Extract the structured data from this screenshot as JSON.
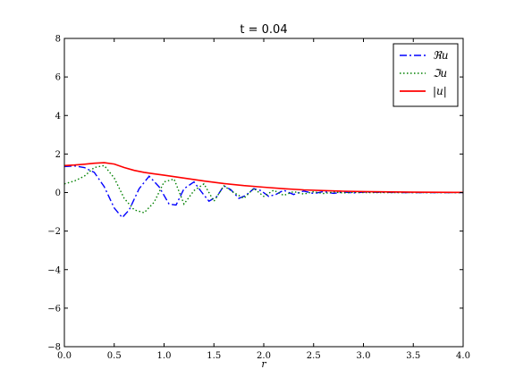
{
  "chart_data": {
    "type": "line",
    "title": "t = 0.04",
    "xlabel": "r",
    "ylabel": "",
    "xlim": [
      0.0,
      4.0
    ],
    "ylim": [
      -8,
      8
    ],
    "x_ticks": [
      "0.0",
      "0.5",
      "1.0",
      "1.5",
      "2.0",
      "2.5",
      "3.0",
      "3.5",
      "4.0"
    ],
    "y_ticks": [
      "−8",
      "−6",
      "−4",
      "−2",
      "0",
      "2",
      "4",
      "6",
      "8"
    ],
    "grid": false,
    "legend_position": "top-right",
    "series": [
      {
        "name": "ℜu",
        "color": "#0000ff",
        "style": "dashdot",
        "x": [
          0.0,
          0.1,
          0.2,
          0.3,
          0.4,
          0.5,
          0.58,
          0.65,
          0.75,
          0.85,
          0.95,
          1.05,
          1.12,
          1.2,
          1.3,
          1.38,
          1.45,
          1.53,
          1.6,
          1.67,
          1.75,
          1.82,
          1.9,
          1.97,
          2.05,
          2.12,
          2.2,
          2.3,
          2.4,
          2.5,
          2.6,
          2.7,
          2.8,
          2.9,
          3.0,
          3.2,
          3.4,
          3.6,
          3.8,
          4.0
        ],
        "y": [
          1.35,
          1.38,
          1.3,
          1.05,
          0.3,
          -0.8,
          -1.3,
          -0.9,
          0.2,
          0.85,
          0.3,
          -0.6,
          -0.65,
          0.2,
          0.55,
          0.0,
          -0.45,
          -0.2,
          0.35,
          0.15,
          -0.3,
          -0.15,
          0.2,
          0.1,
          -0.2,
          -0.1,
          0.12,
          -0.1,
          0.08,
          -0.05,
          0.05,
          -0.04,
          0.03,
          -0.02,
          0.02,
          0.01,
          0.0,
          0.0,
          0.0,
          0.0
        ]
      },
      {
        "name": "ℑu",
        "color": "#008000",
        "style": "dotted",
        "x": [
          0.0,
          0.1,
          0.2,
          0.3,
          0.4,
          0.5,
          0.6,
          0.7,
          0.8,
          0.9,
          1.0,
          1.1,
          1.2,
          1.3,
          1.4,
          1.5,
          1.6,
          1.7,
          1.8,
          1.9,
          2.0,
          2.1,
          2.2,
          2.3,
          2.4,
          2.5,
          2.6,
          2.7,
          2.8,
          2.9,
          3.0,
          3.2,
          3.4,
          3.6,
          3.8,
          4.0
        ],
        "y": [
          0.45,
          0.6,
          0.85,
          1.3,
          1.4,
          0.75,
          -0.3,
          -0.9,
          -1.05,
          -0.5,
          0.55,
          0.7,
          -0.6,
          0.1,
          0.45,
          -0.45,
          0.35,
          0.0,
          -0.3,
          0.22,
          -0.2,
          0.12,
          -0.15,
          0.05,
          -0.08,
          0.04,
          -0.05,
          0.03,
          -0.02,
          0.01,
          0.0,
          0.0,
          0.0,
          0.0,
          0.0,
          0.0
        ]
      },
      {
        "name": "|u|",
        "color": "#ff0000",
        "style": "solid",
        "x": [
          0.0,
          0.1,
          0.2,
          0.3,
          0.4,
          0.5,
          0.6,
          0.7,
          0.8,
          0.9,
          1.0,
          1.2,
          1.4,
          1.6,
          1.8,
          2.0,
          2.2,
          2.4,
          2.6,
          2.8,
          3.0,
          3.5,
          4.0
        ],
        "y": [
          1.4,
          1.43,
          1.47,
          1.52,
          1.55,
          1.48,
          1.3,
          1.15,
          1.05,
          0.97,
          0.9,
          0.75,
          0.6,
          0.47,
          0.36,
          0.28,
          0.2,
          0.14,
          0.1,
          0.07,
          0.05,
          0.02,
          0.01
        ]
      }
    ]
  }
}
